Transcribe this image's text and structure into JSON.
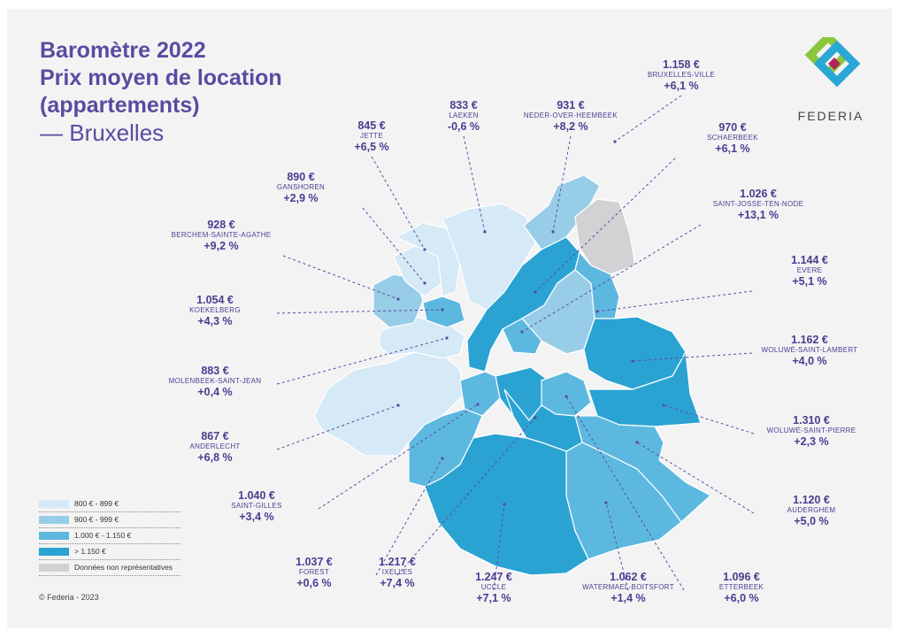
{
  "title": {
    "line1": "Baromètre 2022",
    "line2": "Prix moyen de location",
    "line3": "(appartements)",
    "subtitle": "— Bruxelles"
  },
  "brand": {
    "name": "FEDERIA"
  },
  "copyright": "© Federia - 2023",
  "colors": {
    "band1": "#d6e9f6",
    "band2": "#98cde8",
    "band3": "#5db8e0",
    "band4": "#2aa3d3",
    "na": "#d2d2d4",
    "text": "#4b3d8f"
  },
  "legend": [
    {
      "label": "800 € - 899 €",
      "color": "#d6e9f6"
    },
    {
      "label": "900 € - 999 €",
      "color": "#98cde8"
    },
    {
      "label": "1.000 € - 1.150 €",
      "color": "#5db8e0"
    },
    {
      "label": "> 1.150 €",
      "color": "#2aa3d3"
    },
    {
      "label": "Données non représentatives",
      "color": "#d2d2d4"
    }
  ],
  "communes": [
    {
      "name": "BRUXELLES-VILLE",
      "price": "1.158 €",
      "change": "+6,1 %"
    },
    {
      "name": "LAEKEN",
      "price": "833 €",
      "change": "-0,6 %"
    },
    {
      "name": "NEDER-OVER-HEEMBEEK",
      "price": "931 €",
      "change": "+8,2 %"
    },
    {
      "name": "JETTE",
      "price": "845 €",
      "change": "+6,5 %"
    },
    {
      "name": "SCHAERBEEK",
      "price": "970 €",
      "change": "+6,1 %"
    },
    {
      "name": "GANSHOREN",
      "price": "890 €",
      "change": "+2,9 %"
    },
    {
      "name": "SAINT-JOSSE-TEN-NODE",
      "price": "1.026 €",
      "change": "+13,1 %"
    },
    {
      "name": "BERCHEM-SAINTE-AGATHE",
      "price": "928 €",
      "change": "+9,2 %"
    },
    {
      "name": "EVERE",
      "price": "1.144 €",
      "change": "+5,1 %"
    },
    {
      "name": "KOEKELBERG",
      "price": "1.054 €",
      "change": "+4,3 %"
    },
    {
      "name": "WOLUWÉ-SAINT-LAMBERT",
      "price": "1.162 €",
      "change": "+4,0 %"
    },
    {
      "name": "MOLENBEEK-SAINT-JEAN",
      "price": "883 €",
      "change": "+0,4 %"
    },
    {
      "name": "WOLUWÉ-SAINT-PIERRE",
      "price": "1.310 €",
      "change": "+2,3 %"
    },
    {
      "name": "ANDERLECHT",
      "price": "867 €",
      "change": "+6,8 %"
    },
    {
      "name": "SAINT-GILLES",
      "price": "1.040 €",
      "change": "+3,4 %"
    },
    {
      "name": "AUDERGHEM",
      "price": "1.120 €",
      "change": "+5,0 %"
    },
    {
      "name": "FOREST",
      "price": "1.037 €",
      "change": "+0,6 %"
    },
    {
      "name": "IXELLES",
      "price": "1.217 €",
      "change": "+7,4 %"
    },
    {
      "name": "UCCLE",
      "price": "1.247 €",
      "change": "+7,1 %"
    },
    {
      "name": "WATERMAEL-BOITSFORT",
      "price": "1.062 €",
      "change": "+1,4 %"
    },
    {
      "name": "ETTERBEEK",
      "price": "1.096 €",
      "change": "+6,0 %"
    }
  ]
}
